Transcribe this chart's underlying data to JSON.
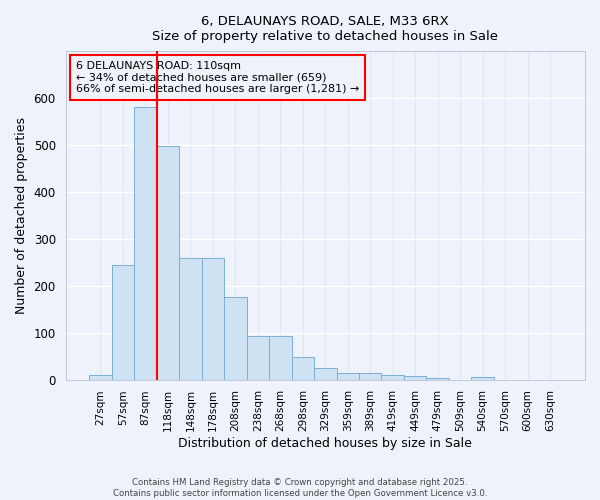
{
  "title1": "6, DELAUNAYS ROAD, SALE, M33 6RX",
  "title2": "Size of property relative to detached houses in Sale",
  "xlabel": "Distribution of detached houses by size in Sale",
  "ylabel": "Number of detached properties",
  "categories": [
    "27sqm",
    "57sqm",
    "87sqm",
    "118sqm",
    "148sqm",
    "178sqm",
    "208sqm",
    "238sqm",
    "268sqm",
    "298sqm",
    "329sqm",
    "359sqm",
    "389sqm",
    "419sqm",
    "449sqm",
    "479sqm",
    "509sqm",
    "540sqm",
    "570sqm",
    "600sqm",
    "630sqm"
  ],
  "values": [
    10,
    245,
    580,
    497,
    260,
    260,
    175,
    93,
    93,
    48,
    25,
    13,
    13,
    10,
    7,
    3,
    0,
    5,
    0,
    0,
    0
  ],
  "bar_color": "#cfe2f3",
  "bar_edge_color": "#7bafd4",
  "vline_color": "red",
  "vline_x_index": 2.5,
  "ylim": [
    0,
    700
  ],
  "yticks": [
    0,
    100,
    200,
    300,
    400,
    500,
    600
  ],
  "annotation_line1": "6 DELAUNAYS ROAD: 110sqm",
  "annotation_line2": "← 34% of detached houses are smaller (659)",
  "annotation_line3": "66% of semi-detached houses are larger (1,281) →",
  "annotation_box_color": "red",
  "footer1": "Contains HM Land Registry data © Crown copyright and database right 2025.",
  "footer2": "Contains public sector information licensed under the Open Government Licence v3.0.",
  "bg_color": "#eef2fb",
  "grid_color": "#d8dff0"
}
